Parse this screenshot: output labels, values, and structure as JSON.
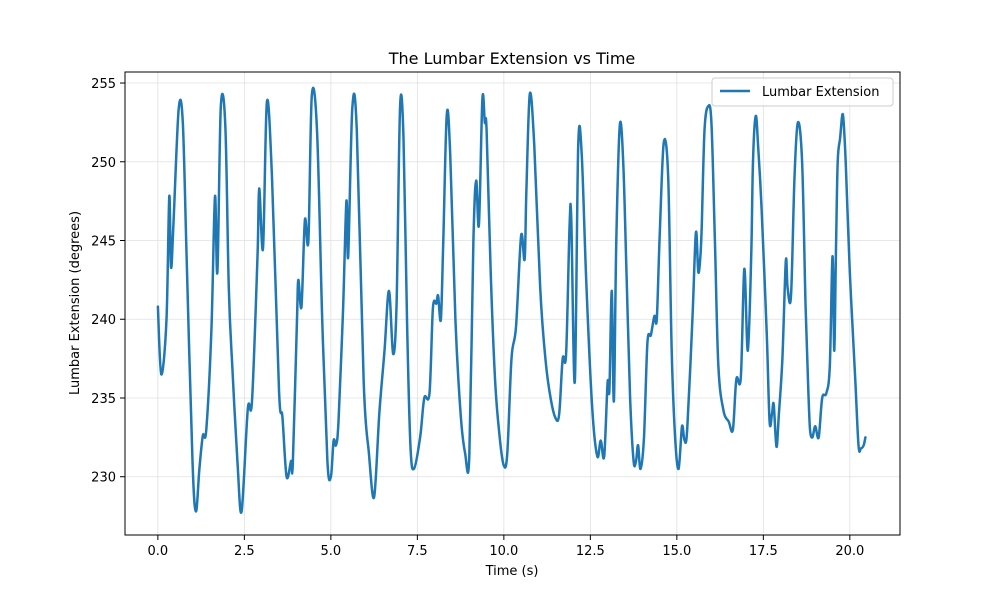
{
  "chart_data": {
    "type": "line",
    "title": "The Lumbar Extension vs Time",
    "xlabel": "Time (s)",
    "ylabel": "Lumbar Extension (degrees)",
    "xlim": [
      -0.95,
      21.45
    ],
    "ylim": [
      226.3,
      255.7
    ],
    "xticks": [
      0.0,
      2.5,
      5.0,
      7.5,
      10.0,
      12.5,
      15.0,
      17.5,
      20.0
    ],
    "xtick_labels": [
      "0.0",
      "2.5",
      "5.0",
      "7.5",
      "10.0",
      "12.5",
      "15.0",
      "17.5",
      "20.0"
    ],
    "yticks": [
      230,
      235,
      240,
      245,
      250,
      255
    ],
    "ytick_labels": [
      "230",
      "235",
      "240",
      "245",
      "250",
      "255"
    ],
    "grid": true,
    "legend_position": "top-right",
    "colors": {
      "line": "#1f77b4",
      "grid": "#e0e0e0",
      "axes": "#000000",
      "legend_border": "#cccccc"
    },
    "series": [
      {
        "name": "Lumbar Extension",
        "x": [
          0.0,
          0.1,
          0.25,
          0.33,
          0.38,
          0.45,
          0.6,
          0.72,
          0.83,
          1.0,
          1.1,
          1.2,
          1.3,
          1.4,
          1.55,
          1.65,
          1.72,
          1.82,
          1.95,
          2.05,
          2.15,
          2.3,
          2.42,
          2.6,
          2.72,
          2.88,
          2.93,
          3.04,
          3.15,
          3.3,
          3.5,
          3.6,
          3.72,
          3.85,
          3.9,
          4.02,
          4.06,
          4.15,
          4.25,
          4.35,
          4.45,
          4.6,
          4.75,
          4.9,
          5.0,
          5.08,
          5.15,
          5.22,
          5.35,
          5.45,
          5.5,
          5.62,
          5.75,
          5.95,
          6.1,
          6.25,
          6.4,
          6.55,
          6.68,
          6.8,
          6.9,
          7.0,
          7.1,
          7.2,
          7.3,
          7.4,
          7.58,
          7.7,
          7.85,
          7.95,
          8.05,
          8.1,
          8.18,
          8.25,
          8.35,
          8.45,
          8.6,
          8.75,
          8.88,
          9.0,
          9.12,
          9.2,
          9.28,
          9.38,
          9.45,
          9.5,
          9.62,
          9.75,
          9.88,
          10.0,
          10.1,
          10.22,
          10.35,
          10.5,
          10.6,
          10.65,
          10.75,
          10.88,
          11.05,
          11.2,
          11.35,
          11.5,
          11.6,
          11.7,
          11.8,
          11.9,
          11.95,
          12.05,
          12.15,
          12.25,
          12.38,
          12.55,
          12.7,
          12.8,
          12.9,
          13.0,
          13.05,
          13.12,
          13.18,
          13.25,
          13.35,
          13.45,
          13.55,
          13.65,
          13.75,
          13.82,
          13.88,
          13.95,
          14.05,
          14.15,
          14.25,
          14.35,
          14.42,
          14.5,
          14.62,
          14.75,
          14.85,
          14.95,
          15.05,
          15.15,
          15.22,
          15.3,
          15.45,
          15.55,
          15.62,
          15.68,
          15.72,
          15.8,
          15.9,
          16.0,
          16.1,
          16.2,
          16.35,
          16.5,
          16.62,
          16.72,
          16.85,
          16.95,
          17.05,
          17.15,
          17.2,
          17.28,
          17.35,
          17.45,
          17.6,
          17.68,
          17.75,
          17.8,
          17.88,
          17.95,
          18.05,
          18.15,
          18.2,
          18.3,
          18.4,
          18.5,
          18.62,
          18.72,
          18.8,
          18.85,
          18.92,
          19.0,
          19.1,
          19.2,
          19.32,
          19.42,
          19.5,
          19.55,
          19.6,
          19.65,
          19.72,
          19.8,
          19.88,
          20.0,
          20.15,
          20.25,
          20.32,
          20.4,
          20.45
        ],
        "y": [
          240.8,
          236.5,
          240.0,
          247.8,
          243.3,
          246.0,
          253.3,
          252.5,
          244.0,
          231.0,
          227.8,
          230.5,
          232.6,
          233.0,
          239.5,
          247.8,
          243.0,
          253.5,
          252.3,
          242.0,
          237.0,
          231.0,
          227.8,
          234.3,
          234.8,
          244.0,
          248.3,
          244.5,
          253.8,
          249.0,
          235.5,
          233.8,
          230.0,
          231.0,
          230.8,
          240.0,
          242.5,
          240.8,
          246.3,
          245.0,
          254.2,
          252.0,
          240.0,
          231.0,
          230.0,
          232.3,
          232.0,
          233.5,
          240.5,
          247.5,
          244.0,
          253.4,
          252.0,
          236.0,
          231.5,
          228.7,
          234.0,
          238.0,
          241.8,
          237.8,
          241.0,
          253.5,
          251.5,
          240.0,
          232.0,
          230.5,
          232.5,
          235.0,
          235.3,
          240.7,
          241.0,
          241.5,
          240.0,
          245.0,
          253.0,
          250.5,
          240.0,
          234.0,
          231.5,
          231.3,
          245.0,
          248.8,
          246.0,
          254.0,
          252.5,
          252.0,
          243.0,
          236.0,
          232.5,
          230.7,
          231.5,
          237.5,
          239.5,
          245.3,
          243.8,
          248.0,
          254.3,
          251.0,
          242.0,
          237.5,
          235.0,
          233.7,
          234.0,
          237.5,
          237.8,
          246.0,
          246.3,
          236.0,
          251.0,
          250.5,
          242.5,
          234.5,
          231.3,
          232.3,
          231.3,
          236.0,
          235.5,
          241.8,
          234.8,
          245.0,
          252.3,
          250.0,
          242.5,
          235.0,
          231.0,
          231.0,
          232.0,
          230.5,
          232.5,
          238.5,
          239.0,
          240.2,
          240.0,
          245.0,
          251.2,
          249.0,
          238.0,
          232.5,
          230.5,
          233.2,
          232.3,
          233.0,
          240.0,
          245.5,
          243.0,
          244.0,
          246.0,
          252.0,
          253.5,
          252.5,
          245.0,
          237.0,
          234.2,
          233.5,
          233.0,
          236.2,
          236.3,
          243.2,
          238.0,
          244.0,
          250.0,
          252.9,
          251.0,
          247.0,
          239.0,
          233.5,
          234.0,
          234.6,
          231.9,
          234.0,
          237.5,
          243.7,
          242.0,
          241.5,
          249.0,
          252.5,
          250.0,
          241.0,
          235.5,
          233.0,
          232.5,
          233.2,
          232.5,
          235.0,
          235.3,
          237.0,
          244.0,
          238.0,
          244.5,
          250.0,
          251.5,
          253.0,
          250.0,
          243.0,
          236.5,
          232.0,
          231.8,
          232.0,
          232.5
        ]
      }
    ]
  }
}
